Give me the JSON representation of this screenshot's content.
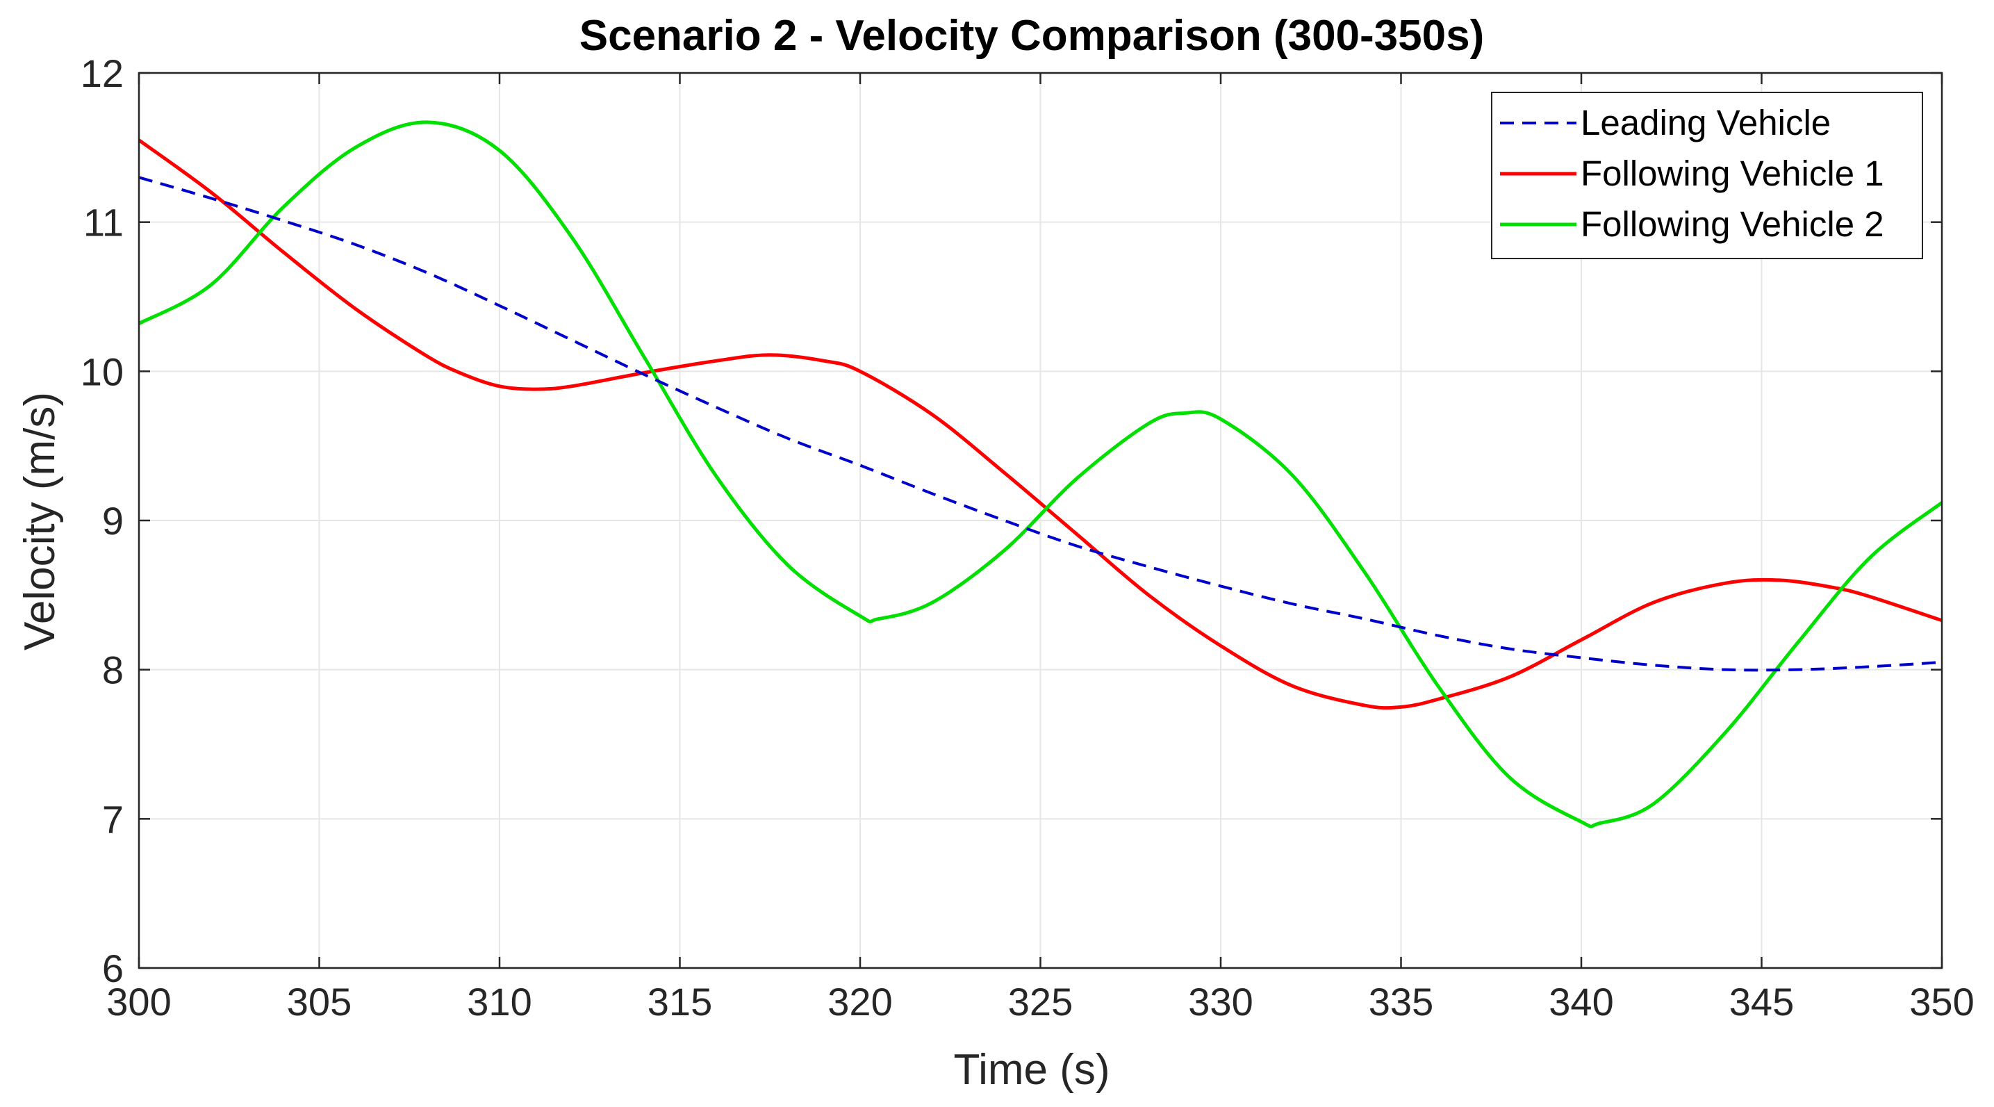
{
  "chart_data": {
    "type": "line",
    "title": "Scenario 2 - Velocity Comparison (300-350s)",
    "xlabel": "Time (s)",
    "ylabel": "Velocity (m/s)",
    "xlim": [
      300,
      350
    ],
    "ylim": [
      6,
      12
    ],
    "xticks": [
      300,
      305,
      310,
      315,
      320,
      325,
      330,
      335,
      340,
      345,
      350
    ],
    "yticks": [
      6,
      7,
      8,
      9,
      10,
      11,
      12
    ],
    "grid": true,
    "legend_position": "top-right",
    "series": [
      {
        "name": "Leading Vehicle",
        "color": "#0000cc",
        "style": "dashed",
        "x": [
          300,
          302,
          304,
          306,
          308,
          310,
          312,
          314,
          316,
          318,
          320,
          322,
          324,
          326,
          328,
          330,
          332,
          334,
          336,
          338,
          340,
          342,
          344,
          346,
          348,
          350
        ],
        "y": [
          11.3,
          11.16,
          11.01,
          10.85,
          10.66,
          10.44,
          10.21,
          9.98,
          9.76,
          9.55,
          9.37,
          9.18,
          9.0,
          8.83,
          8.69,
          8.56,
          8.44,
          8.34,
          8.23,
          8.14,
          8.08,
          8.03,
          8.0,
          8.0,
          8.02,
          8.05
        ]
      },
      {
        "name": "Following Vehicle 1",
        "color": "#ff0000",
        "style": "solid",
        "x": [
          300,
          302,
          304,
          306,
          308,
          309,
          310,
          311,
          312,
          314,
          316,
          317.5,
          319,
          320,
          322,
          324,
          326,
          328,
          330,
          332,
          334,
          335,
          336,
          338,
          340,
          342,
          344,
          345.5,
          347,
          348,
          350
        ],
        "y": [
          11.55,
          11.2,
          10.8,
          10.42,
          10.1,
          9.98,
          9.9,
          9.88,
          9.9,
          9.99,
          10.07,
          10.11,
          10.07,
          10.0,
          9.71,
          9.32,
          8.91,
          8.5,
          8.16,
          7.89,
          7.76,
          7.75,
          7.8,
          7.95,
          8.2,
          8.45,
          8.58,
          8.6,
          8.55,
          8.49,
          8.33
        ]
      },
      {
        "name": "Following Vehicle 2",
        "color": "#00e000",
        "style": "solid",
        "x": [
          300,
          302,
          304,
          306,
          308,
          310,
          312,
          314,
          316,
          318,
          320,
          320.5,
          322,
          324,
          326,
          328,
          329,
          330,
          332,
          334,
          336,
          338,
          340,
          340.5,
          342,
          344,
          346,
          348,
          350
        ],
        "y": [
          10.32,
          10.58,
          11.1,
          11.5,
          11.67,
          11.48,
          10.9,
          10.1,
          9.3,
          8.7,
          8.36,
          8.34,
          8.45,
          8.8,
          9.28,
          9.65,
          9.72,
          9.68,
          9.3,
          8.65,
          7.9,
          7.28,
          6.98,
          6.97,
          7.1,
          7.58,
          8.18,
          8.75,
          9.12
        ]
      }
    ]
  }
}
